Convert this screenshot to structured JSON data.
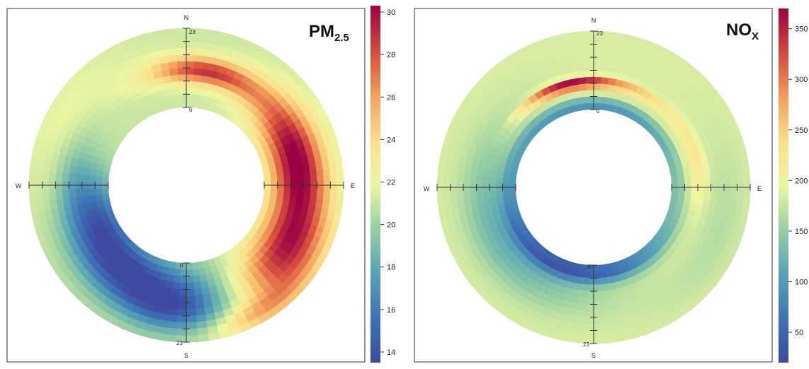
{
  "panels": [
    {
      "title_main": "PM",
      "title_sub": "2.5",
      "compass": {
        "n": "N",
        "s": "S",
        "e": "E",
        "w": "W"
      },
      "hour_start": "0",
      "hour_end": "23",
      "colorbar": {
        "min": 13.5,
        "max": 30.3,
        "ticks": [
          "14",
          "16",
          "18",
          "20",
          "22",
          "24",
          "26",
          "28",
          "30"
        ],
        "tick_values": [
          14,
          16,
          18,
          20,
          22,
          24,
          26,
          28,
          30
        ]
      }
    },
    {
      "title_main": "NO",
      "title_sub": "X",
      "compass": {
        "n": "N",
        "s": "S",
        "e": "E",
        "w": "W"
      },
      "hour_start": "0",
      "hour_end": "23",
      "colorbar": {
        "min": 20,
        "max": 370,
        "ticks": [
          "50",
          "100",
          "150",
          "200",
          "250",
          "300",
          "350"
        ],
        "tick_values": [
          50,
          100,
          150,
          200,
          250,
          300,
          350
        ]
      }
    }
  ],
  "chart_data": [
    {
      "type": "heatmap",
      "subtype": "polar annulus (wind direction × hour of day)",
      "title": "PM2.5",
      "angular_axis": [
        "N",
        "E",
        "S",
        "W"
      ],
      "radial_axis": {
        "range": [
          0,
          23
        ]
      },
      "colorscale": "Spectral (blue = low, red = high)",
      "colorbar_range": [
        13.5,
        30.3
      ],
      "colorbar_ticks": [
        14,
        16,
        18,
        20,
        22,
        24,
        26,
        28,
        30
      ],
      "features": [
        {
          "bearing": 10,
          "hour_range": [
            8,
            14
          ],
          "value": 28.5
        },
        {
          "bearing": 85,
          "hour_range": [
            4,
            16
          ],
          "value": 29.5
        },
        {
          "bearing": 120,
          "hour_range": [
            0,
            23
          ],
          "value": 27.0
        },
        {
          "bearing": 225,
          "hour_range": [
            4,
            18
          ],
          "value": 14.0
        },
        {
          "bearing": 300,
          "hour_range": [
            0,
            23
          ],
          "value": 21.0
        }
      ]
    },
    {
      "type": "heatmap",
      "subtype": "polar annulus (wind direction × hour of day)",
      "title": "NOX",
      "angular_axis": [
        "N",
        "E",
        "S",
        "W"
      ],
      "radial_axis": {
        "range": [
          0,
          23
        ]
      },
      "colorscale": "Spectral (blue = low, red = high)",
      "colorbar_range": [
        20,
        370
      ],
      "colorbar_ticks": [
        50,
        100,
        150,
        200,
        250,
        300,
        350
      ],
      "features": [
        {
          "bearing": 345,
          "hour_range": [
            7,
            9
          ],
          "value": 350
        },
        {
          "bearing": 0,
          "hour_range": [
            1,
            2
          ],
          "value": 60
        },
        {
          "bearing": 180,
          "hour_range": [
            1,
            4
          ],
          "value": 30
        },
        {
          "bearing": 60,
          "hour_range": [
            0,
            23
          ],
          "value": 185
        },
        {
          "bearing": 260,
          "hour_range": [
            10,
            23
          ],
          "value": 130
        }
      ]
    }
  ]
}
